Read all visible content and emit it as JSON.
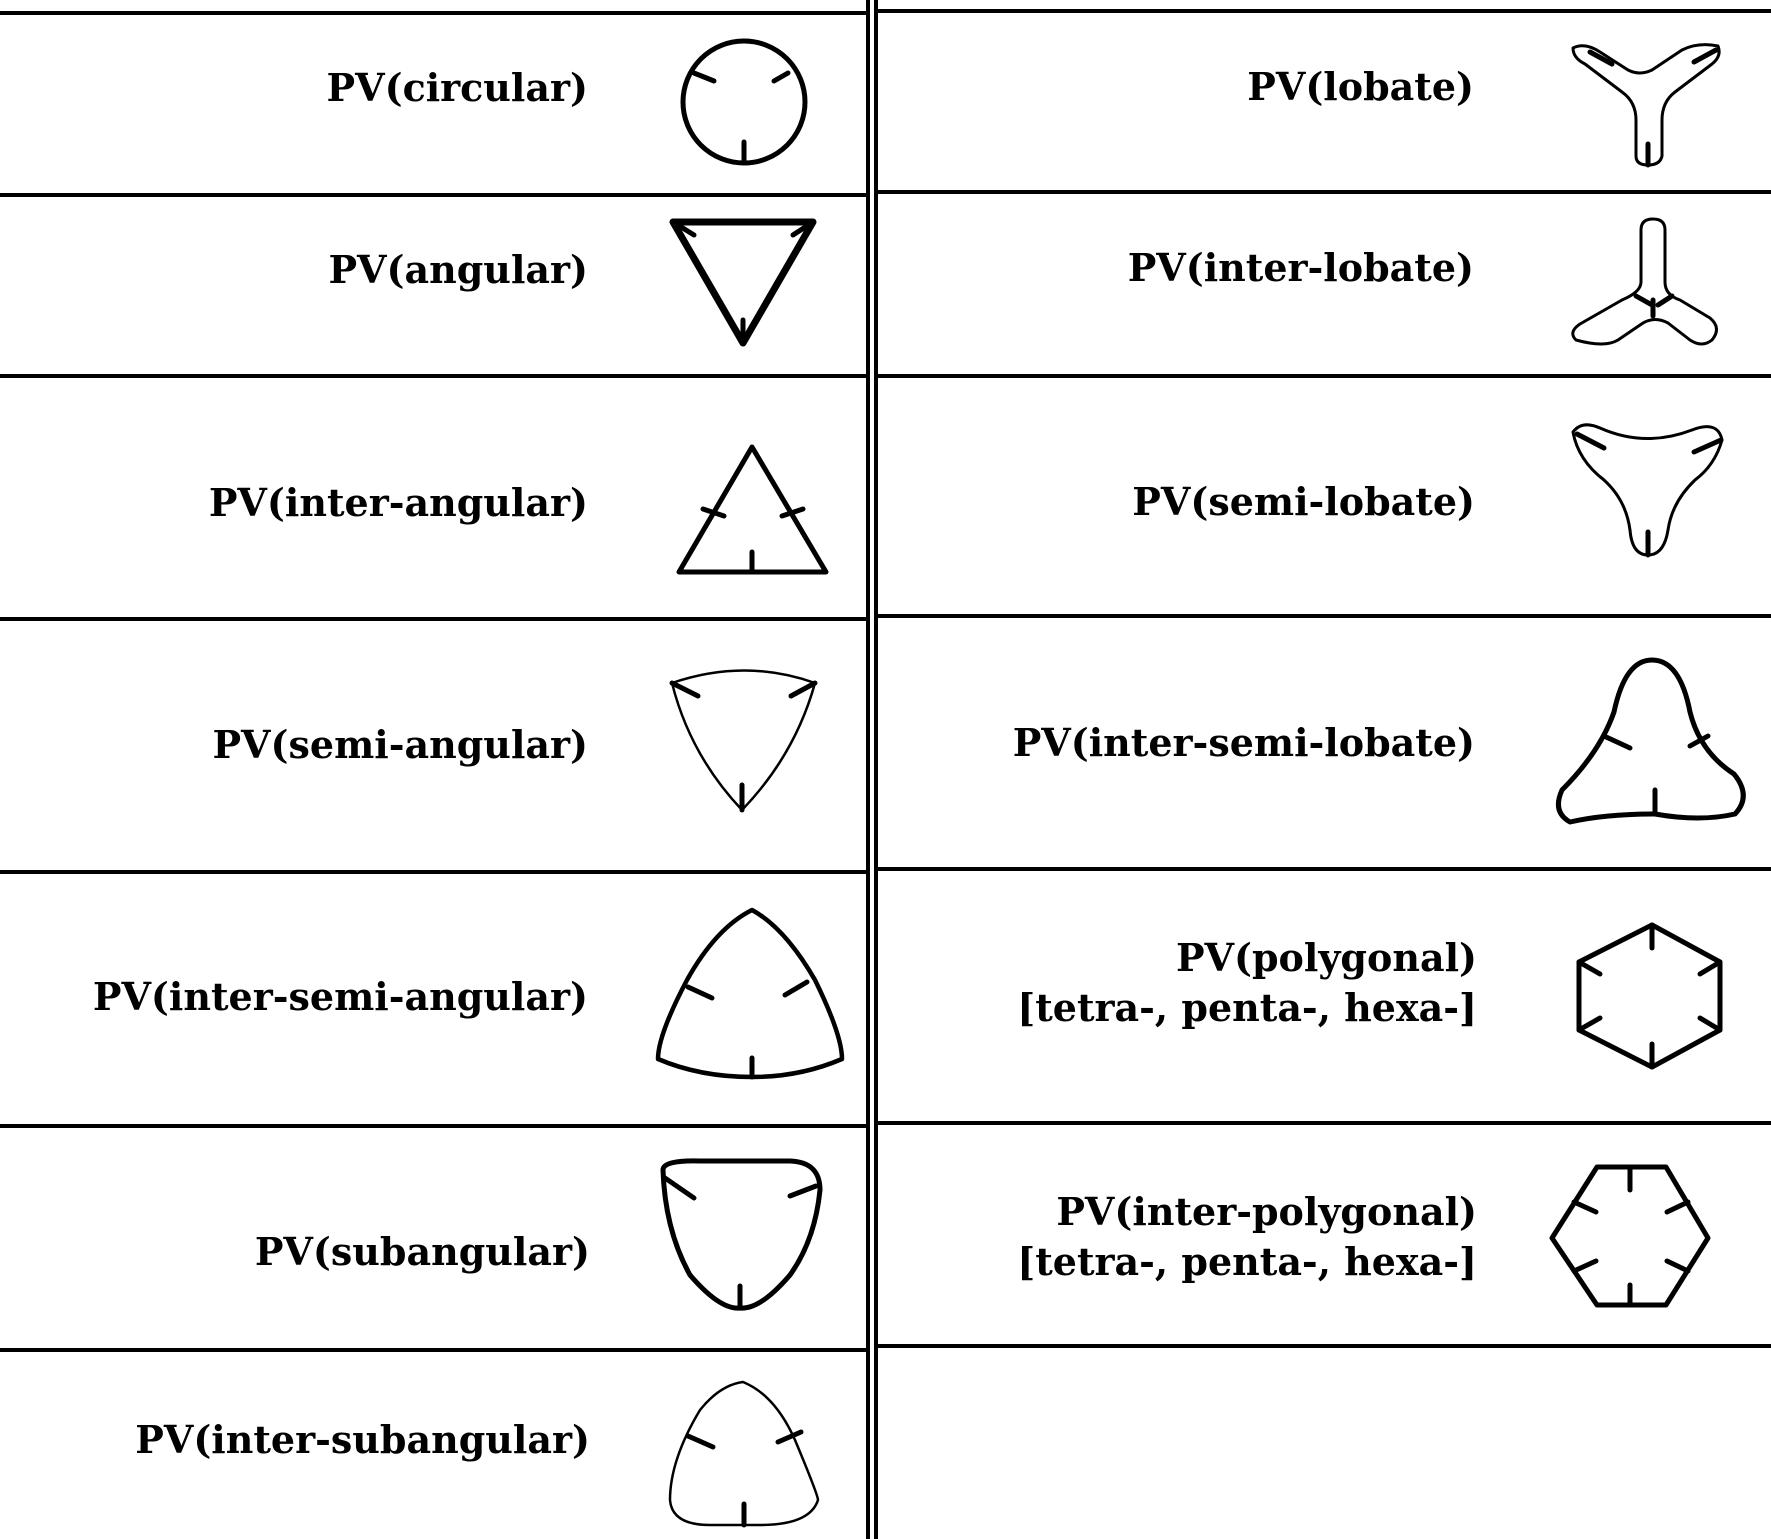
{
  "left_column": [
    {
      "label": "PV(circular)",
      "icon": "circular-shape-icon"
    },
    {
      "label": "PV(angular)",
      "icon": "angular-shape-icon"
    },
    {
      "label": "PV(inter-angular)",
      "icon": "inter-angular-shape-icon"
    },
    {
      "label": "PV(semi-angular)",
      "icon": "semi-angular-shape-icon"
    },
    {
      "label": "PV(inter-semi-angular)",
      "icon": "inter-semi-angular-shape-icon"
    },
    {
      "label": "PV(subangular)",
      "icon": "subangular-shape-icon"
    },
    {
      "label": "PV(inter-subangular)",
      "icon": "inter-subangular-shape-icon"
    }
  ],
  "right_column": [
    {
      "label": "PV(lobate)",
      "icon": "lobate-shape-icon"
    },
    {
      "label": "PV(inter-lobate)",
      "icon": "inter-lobate-shape-icon"
    },
    {
      "label": "PV(semi-lobate)",
      "icon": "semi-lobate-shape-icon"
    },
    {
      "label": "PV(inter-semi-lobate)",
      "icon": "inter-semi-lobate-shape-icon"
    },
    {
      "label": "PV(polygonal)",
      "label_line2": "[tetra-, penta-, hexa-]",
      "icon": "polygonal-shape-icon"
    },
    {
      "label": "PV(inter-polygonal)",
      "label_line2": "[tetra-, penta-, hexa-]",
      "icon": "inter-polygonal-shape-icon"
    }
  ]
}
